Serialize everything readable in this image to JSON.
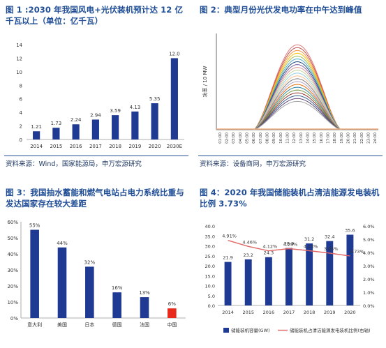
{
  "panels": [
    {
      "title": "图 1 :2030 年我国风电+光伏装机预计达 12 亿千瓦以上（单位：亿千瓦）",
      "source": "资料来源：Wind，国家能源局，申万宏源研究"
    },
    {
      "title": "图 2：典型月份光伏发电功率在中午达到峰值",
      "source": "资料来源：设备商网，申万宏源研究"
    },
    {
      "title": "图 3：我国抽水蓄能和燃气电站占电力系统比重与发达国家存在较大差距",
      "source": ""
    },
    {
      "title": "图 4：2020 年我国储能装机占清洁能源发电装机比例 3.73%",
      "source": ""
    }
  ],
  "chart_data": [
    {
      "type": "bar",
      "categories": [
        "2014",
        "2015",
        "2016",
        "2017",
        "2018",
        "2019",
        "2020",
        "2030E"
      ],
      "values": [
        1.21,
        1.73,
        2.24,
        2.94,
        3.59,
        4.13,
        5.35,
        12.0
      ],
      "value_labels": [
        "1.21",
        "1.73",
        "2.24",
        "2.94",
        "3.59",
        "4.13",
        "5.35",
        "12.0"
      ],
      "ylim": [
        0,
        14
      ],
      "yticks": [
        "0",
        "2",
        "4",
        "6",
        "8",
        "10",
        "12",
        "14"
      ],
      "color": "#1f3a93"
    },
    {
      "type": "line",
      "ylabel": "功率 / 10 MW",
      "xticks": [
        "01:00",
        "02:00",
        "03:00",
        "04:00",
        "05:00",
        "06:00",
        "07:00",
        "08:00",
        "09:00",
        "10:00",
        "11:00",
        "12:00",
        "13:00",
        "14:00",
        "15:00",
        "16:00",
        "17:00",
        "18:00",
        "19:00",
        "20:00",
        "21:00",
        "22:00",
        "23:00",
        "24:00"
      ],
      "x_range": [
        6,
        19
      ],
      "peak_hour": 13,
      "series_peaks": [
        6.0,
        5.8,
        5.6,
        5.4,
        5.2,
        5.0,
        4.8,
        4.6,
        4.4,
        4.2,
        4.0,
        3.8,
        3.6,
        3.4,
        3.2,
        3.0,
        2.8,
        2.6,
        2.4,
        2.2,
        2.0
      ],
      "colors": [
        "#e07a7a",
        "#c0504d",
        "#f79646",
        "#ffc000",
        "#9bbb59",
        "#4bacc6",
        "#1f497d",
        "#8064a2",
        "#d99694",
        "#c3d69b",
        "#93cddd",
        "#fac090",
        "#7f7f7f",
        "#b2a2c7",
        "#e46c0a",
        "#31859c",
        "#77933c",
        "#953735",
        "#376092",
        "#604a7b",
        "#a5a5a5"
      ]
    },
    {
      "type": "bar",
      "categories": [
        "意大利",
        "美国",
        "日本",
        "德国",
        "法国",
        "中国"
      ],
      "values": [
        55,
        44,
        32,
        16,
        13,
        6
      ],
      "value_labels": [
        "55%",
        "44%",
        "32%",
        "16%",
        "13%",
        "6%"
      ],
      "ylim": [
        0,
        60
      ],
      "yticks": [
        "0%",
        "10%",
        "20%",
        "30%",
        "40%",
        "50%",
        "60%"
      ],
      "color": "#1f3a93",
      "highlight_color": "#e8291c"
    },
    {
      "type": "bar",
      "categories": [
        "2014",
        "2015",
        "2016",
        "2017",
        "2018",
        "2019",
        "2020"
      ],
      "series": [
        {
          "name": "储能装机容量(GW)",
          "values": [
            21.9,
            23.2,
            24.3,
            28.9,
            31.2,
            32.4,
            35.6
          ],
          "value_labels": [
            "21.9",
            "23.2",
            "24.3",
            "28.9",
            "31.2",
            "32.4",
            "35.6"
          ],
          "color": "#1f3a93"
        },
        {
          "name": "储能装机占清洁能源发电装机比例(右轴)",
          "values": [
            4.91,
            4.46,
            4.12,
            4.29,
            4.13,
            3.95,
            3.73
          ],
          "value_labels": [
            "4.91%",
            "4.46%",
            "4.12%",
            "4.29%",
            "4.13%",
            "3.95%",
            "3.73%"
          ],
          "color": "#e06666"
        }
      ],
      "ylim": [
        0,
        40
      ],
      "y2lim": [
        0,
        6
      ],
      "yticks": [
        "0.0",
        "5.0",
        "10.0",
        "15.0",
        "20.0",
        "25.0",
        "30.0",
        "35.0",
        "40.0"
      ],
      "y2ticks": [
        "0.0%",
        "1.0%",
        "2.0%",
        "3.0%",
        "4.0%",
        "5.0%",
        "6.0%"
      ]
    }
  ]
}
